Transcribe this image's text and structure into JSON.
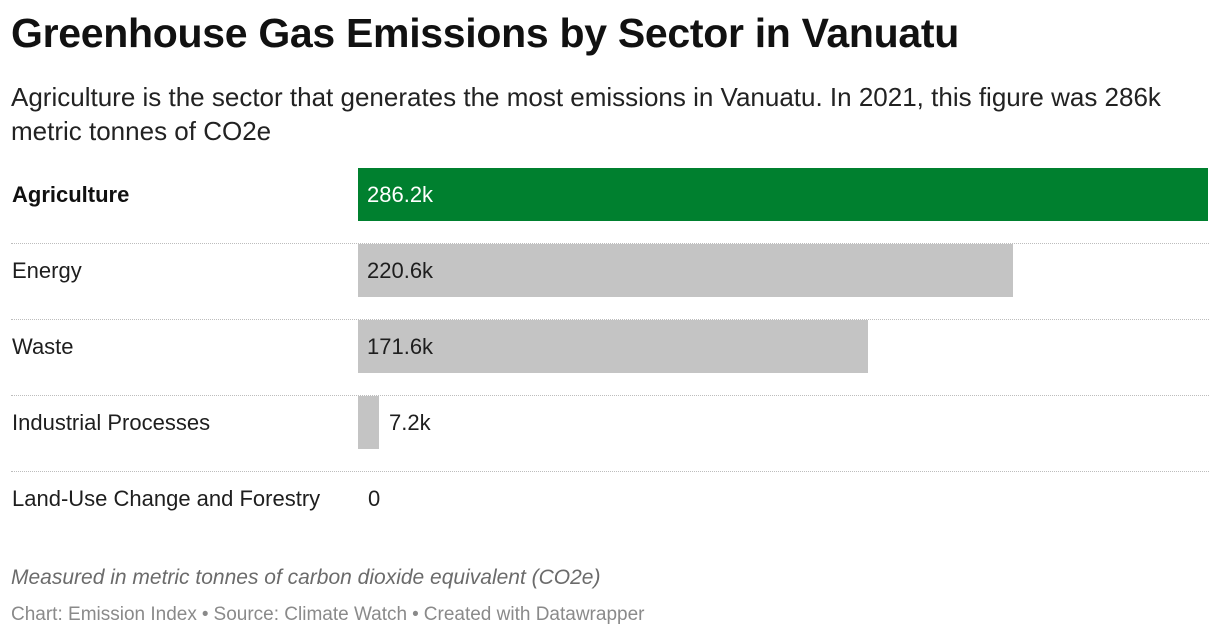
{
  "title": "Greenhouse Gas Emissions by Sector in Vanuatu",
  "subtitle": "Agriculture is the sector that generates the most emissions in Vanuatu. In 2021, this figure was 286k metric tonnes of CO2e",
  "notes": "Measured in metric tonnes of carbon dioxide equivalent (CO2e)",
  "footer": {
    "chart_by": "Chart: Emission Index",
    "source": "Source: Climate Watch",
    "created_with": "Created with Datawrapper",
    "separator": "•"
  },
  "colors": {
    "highlight": "#00802f",
    "default_bar": "#c4c4c4",
    "label_on_highlight": "#ffffff",
    "label_default": "#1e1e1e"
  },
  "chart_data": {
    "type": "bar",
    "orientation": "horizontal",
    "categories": [
      "Agriculture",
      "Energy",
      "Waste",
      "Industrial Processes",
      "Land-Use Change and Forestry"
    ],
    "values": [
      286.2,
      220.6,
      171.6,
      7.2,
      0
    ],
    "value_labels": [
      "286.2k",
      "220.6k",
      "171.6k",
      "7.2k",
      "0"
    ],
    "highlight_category": "Agriculture",
    "unit": "thousand metric tonnes CO2e",
    "xlim": [
      0,
      286.2
    ],
    "grid": false,
    "legend": "none"
  }
}
